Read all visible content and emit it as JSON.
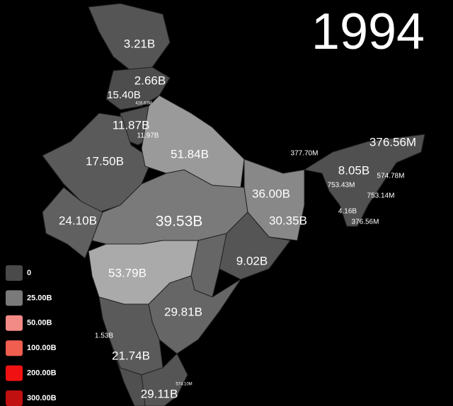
{
  "year": "1994",
  "regions": [
    {
      "label": "3.21B"
    },
    {
      "label": "2.66B"
    },
    {
      "label": "15.40B"
    },
    {
      "label": "416.63M"
    },
    {
      "label": "11.87B"
    },
    {
      "label": "11.97B"
    },
    {
      "label": "17.50B"
    },
    {
      "label": "51.84B"
    },
    {
      "label": "377.70M"
    },
    {
      "label": "376.56M"
    },
    {
      "label": "8.05B"
    },
    {
      "label": "574.78M"
    },
    {
      "label": "753.43M"
    },
    {
      "label": "753.14M"
    },
    {
      "label": "36.00B"
    },
    {
      "label": "4.16B"
    },
    {
      "label": "376.56M"
    },
    {
      "label": "24.10B"
    },
    {
      "label": "39.53B"
    },
    {
      "label": "30.35B"
    },
    {
      "label": "9.02B"
    },
    {
      "label": "53.79B"
    },
    {
      "label": "29.81B"
    },
    {
      "label": "1.53B"
    },
    {
      "label": "21.74B"
    },
    {
      "label": "574.10M"
    },
    {
      "label": "29.11B"
    }
  ],
  "legend": [
    {
      "label": "0",
      "color": "#4a4a4a"
    },
    {
      "label": "25.00B",
      "color": "#7a7a7a"
    },
    {
      "label": "50.00B",
      "color": "#f28a86"
    },
    {
      "label": "100.00B",
      "color": "#f05e50"
    },
    {
      "label": "200.00B",
      "color": "#f01212"
    },
    {
      "label": "300.00B",
      "color": "#c01010"
    }
  ]
}
